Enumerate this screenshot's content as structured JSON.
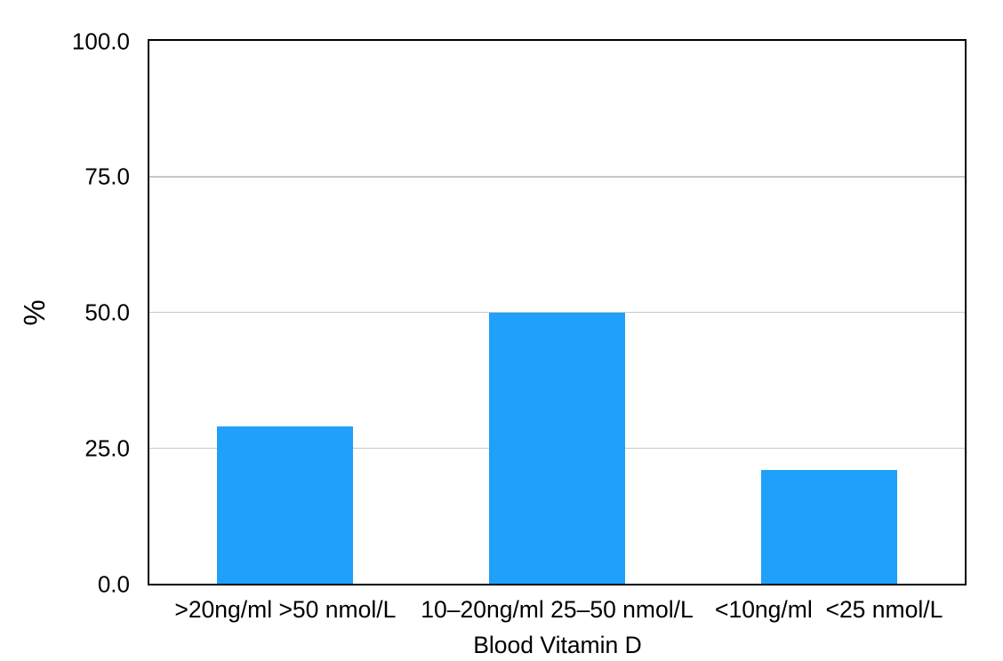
{
  "chart_data": {
    "type": "bar",
    "title": "",
    "categories": [
      ">20ng/ml >50 nmol/L",
      "10–20ng/ml 25–50 nmol/L",
      "<10ng/ml  <25 nmol/L"
    ],
    "values": [
      29,
      50,
      21
    ],
    "xlabel": "Blood Vitamin D",
    "ylabel": "%",
    "ylim": [
      0,
      100
    ],
    "yticks": [
      0,
      25,
      50,
      75,
      100
    ],
    "ytick_labels": [
      "0.0",
      "25.0",
      "50.0",
      "75.0",
      "100.0"
    ],
    "grid": "horizontal-only",
    "legend": "none",
    "bar_width_fraction": 0.5,
    "colors": {
      "bar": "#1FA0FA",
      "gridline": "#C8C8C8",
      "frame": "#000000",
      "text": "#000000",
      "background": "#FFFFFF"
    }
  }
}
